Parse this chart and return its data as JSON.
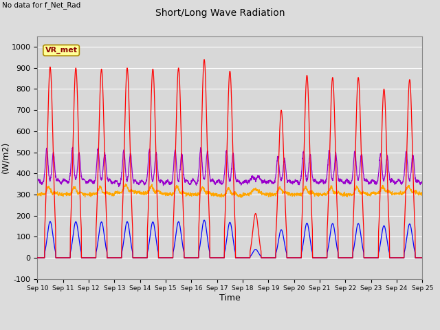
{
  "title": "Short/Long Wave Radiation",
  "xlabel": "Time",
  "ylabel": "(W/m2)",
  "ylim": [
    -100,
    1050
  ],
  "yticks": [
    -100,
    0,
    100,
    200,
    300,
    400,
    500,
    600,
    700,
    800,
    900,
    1000
  ],
  "x_labels": [
    "Sep 10",
    "Sep 11",
    "Sep 12",
    "Sep 13",
    "Sep 14",
    "Sep 15",
    "Sep 16",
    "Sep 17",
    "Sep 18",
    "Sep 19",
    "Sep 20",
    "Sep 21",
    "Sep 22",
    "Sep 23",
    "Sep 24",
    "Sep 25"
  ],
  "no_data_label": "No data for f_Net_Rad",
  "station_label": "VR_met",
  "sw_in_color": "#FF0000",
  "lw_in_color": "#FFA500",
  "sw_out_color": "#0000FF",
  "lw_out_color": "#9900CC",
  "bg_color": "#DCDCDC",
  "plot_bg_color": "#D8D8D8",
  "grid_color": "#FFFFFF",
  "sw_in_peaks": [
    905,
    900,
    895,
    900,
    895,
    900,
    940,
    885,
    210,
    700,
    865,
    855,
    855,
    800,
    845
  ],
  "lw_in_base": [
    300,
    300,
    300,
    310,
    305,
    300,
    300,
    295,
    300,
    300,
    300,
    300,
    300,
    305,
    305
  ],
  "lw_out_base": [
    360,
    360,
    360,
    360,
    360,
    360,
    360,
    360,
    360,
    360,
    360,
    360,
    360,
    360,
    360
  ]
}
